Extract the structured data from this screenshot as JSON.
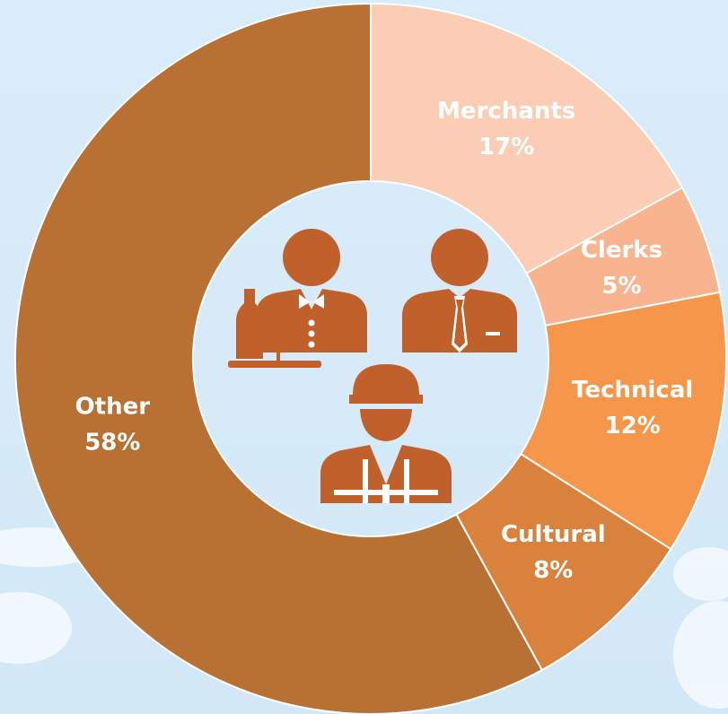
{
  "chart_data": {
    "type": "donut",
    "categories": [
      "Merchants",
      "Clerks",
      "Technical",
      "Cultural",
      "Other"
    ],
    "values": [
      17,
      5,
      12,
      8,
      58
    ],
    "value_labels": [
      "17%",
      "5%",
      "12%",
      "8%",
      "58%"
    ],
    "colors": [
      "#fbcdb4",
      "#f8b48f",
      "#f5964a",
      "#d9823e",
      "#b87033"
    ]
  }
}
